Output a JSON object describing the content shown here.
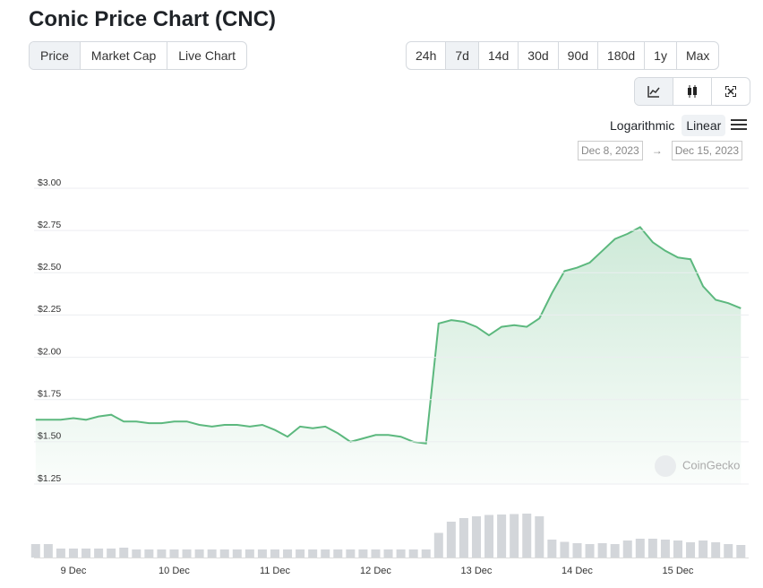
{
  "header": {
    "title": "Conic Price Chart (CNC)"
  },
  "tabs": [
    "Price",
    "Market Cap",
    "Live Chart"
  ],
  "ranges": [
    "24h",
    "7d",
    "14d",
    "30d",
    "90d",
    "180d",
    "1y",
    "Max"
  ],
  "active_range": "7d",
  "scale": {
    "options": [
      "Logarithmic",
      "Linear"
    ],
    "active": "Linear"
  },
  "dates": {
    "from": "Dec 8, 2023",
    "separator": "→",
    "to": "Dec 15, 2023"
  },
  "watermark": "CoinGecko",
  "chart_data": {
    "type": "area",
    "categories": [
      null,
      null,
      null,
      "9 Dec",
      null,
      null,
      null,
      null,
      null,
      null,
      null,
      "10 Dec",
      null,
      null,
      null,
      null,
      null,
      null,
      null,
      "11 Dec",
      null,
      null,
      null,
      null,
      null,
      null,
      null,
      "12 Dec",
      null,
      null,
      null,
      null,
      null,
      null,
      null,
      "13 Dec",
      null,
      null,
      null,
      null,
      null,
      null,
      null,
      "14 Dec",
      null,
      null,
      null,
      null,
      null,
      null,
      null,
      "15 Dec",
      null,
      null,
      null,
      null,
      null
    ],
    "series": [
      {
        "color": "#5cb87e",
        "values": [
          1.63,
          1.63,
          1.63,
          1.64,
          1.63,
          1.65,
          1.66,
          1.62,
          1.62,
          1.61,
          1.61,
          1.62,
          1.62,
          1.6,
          1.59,
          1.6,
          1.6,
          1.59,
          1.6,
          1.57,
          1.53,
          1.59,
          1.58,
          1.59,
          1.55,
          1.5,
          1.52,
          1.54,
          1.54,
          1.53,
          1.5,
          1.49,
          2.2,
          2.22,
          2.21,
          2.18,
          2.13,
          2.18,
          2.19,
          2.18,
          2.23,
          2.38,
          2.51,
          2.53,
          2.56,
          2.63,
          2.7,
          2.73,
          2.77,
          2.68,
          2.63,
          2.59,
          2.58,
          2.42,
          2.34,
          2.32,
          2.29
        ]
      },
      {
        "color": "#d3d6da",
        "axis": "y2",
        "values": [
          30,
          30,
          20,
          20,
          20,
          20,
          20,
          22,
          18,
          18,
          18,
          18,
          18,
          18,
          18,
          18,
          18,
          18,
          18,
          18,
          18,
          18,
          18,
          18,
          18,
          18,
          18,
          18,
          18,
          18,
          18,
          18,
          55,
          80,
          88,
          92,
          95,
          96,
          97,
          98,
          92,
          40,
          35,
          32,
          30,
          32,
          30,
          38,
          42,
          42,
          40,
          38,
          34,
          38,
          34,
          30,
          28
        ]
      }
    ],
    "ylim": [
      1.25,
      3.0
    ],
    "yticks": [
      {
        "value": 1.25,
        "label": "$1.25"
      },
      {
        "value": 1.5,
        "label": "$1.50"
      },
      {
        "value": 1.75,
        "label": "$1.75"
      },
      {
        "value": 2.0,
        "label": "$2.00"
      },
      {
        "value": 2.25,
        "label": "$2.25"
      },
      {
        "value": 2.5,
        "label": "$2.50"
      },
      {
        "value": 2.75,
        "label": "$2.75"
      },
      {
        "value": 3.0,
        "label": "$3.00"
      }
    ],
    "y2lim": [
      0,
      100
    ],
    "grid": true
  }
}
